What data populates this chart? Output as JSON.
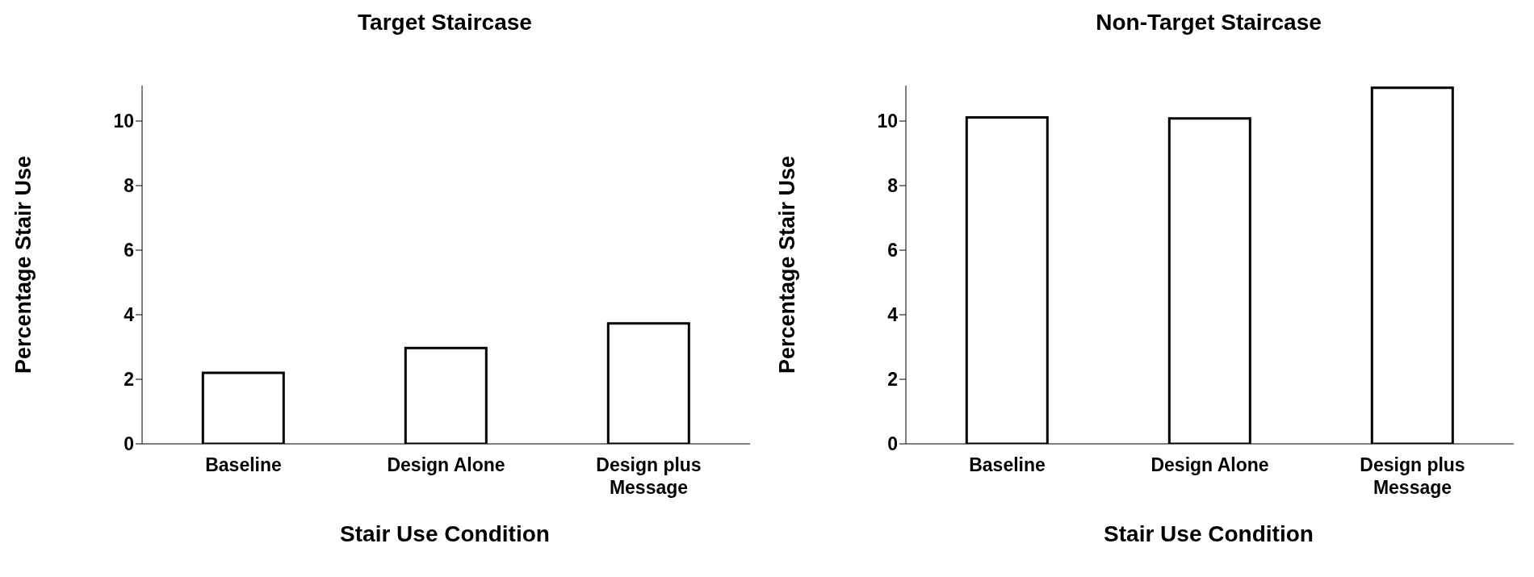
{
  "chart_data": [
    {
      "type": "bar",
      "title": "Target Staircase",
      "xlabel": "Stair Use Condition",
      "ylabel": "Percentage Stair Use",
      "categories": [
        "Baseline",
        "Design Alone",
        "Design plus Message"
      ],
      "values": [
        2.2,
        2.97,
        3.73
      ],
      "color": "#ffffff",
      "ylim": [
        0,
        11.1
      ],
      "yticks": [
        0,
        2,
        4,
        6,
        8,
        10
      ],
      "grid": false,
      "legend": false
    },
    {
      "type": "bar",
      "title": "Non-Target Staircase",
      "xlabel": "Stair Use Condition",
      "ylabel": "Percentage Stair Use",
      "categories": [
        "Baseline",
        "Design Alone",
        "Design plus Message"
      ],
      "values": [
        10.11,
        10.08,
        11.03
      ],
      "color": "#ffffff",
      "ylim": [
        0,
        11.1
      ],
      "yticks": [
        0,
        2,
        4,
        6,
        8,
        10
      ],
      "grid": false,
      "legend": false
    }
  ]
}
